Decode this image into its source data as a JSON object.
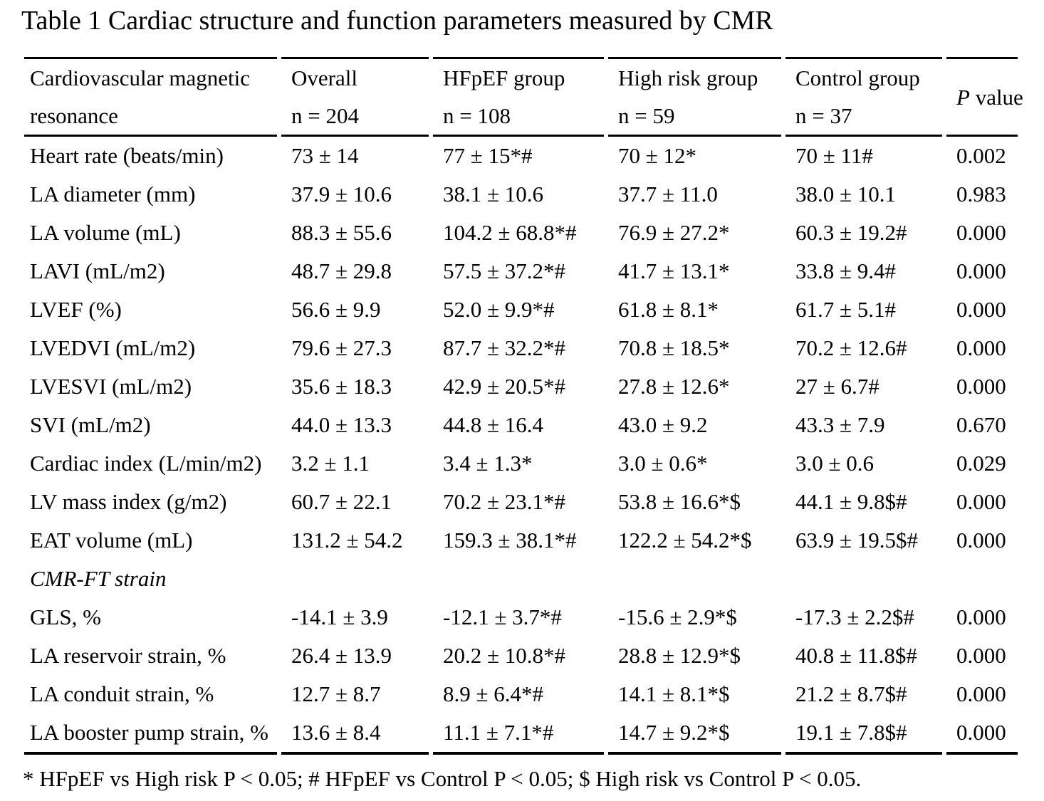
{
  "title": "Table 1 Cardiac structure and function parameters measured by CMR",
  "table": {
    "header": {
      "col1_line1": "Cardiovascular magnetic",
      "col1_line2": "resonance",
      "groups": [
        {
          "name": "Overall",
          "n": "n = 204"
        },
        {
          "name": "HFpEF group",
          "n": "n = 108"
        },
        {
          "name": "High risk group",
          "n": "n = 59"
        },
        {
          "name": "Control group",
          "n": "n = 37"
        }
      ],
      "p_italic": "P",
      "p_rest": " value"
    },
    "rows": [
      {
        "label": "Heart rate (beats/min)",
        "overall": "73 ± 14",
        "hfpef": "77 ± 15*#",
        "high_risk": "70 ± 12*",
        "control": "70 ± 11#",
        "p": "0.002",
        "section": false
      },
      {
        "label": "LA diameter (mm)",
        "overall": "37.9 ± 10.6",
        "hfpef": "38.1 ± 10.6",
        "high_risk": "37.7 ± 11.0",
        "control": "38.0 ± 10.1",
        "p": "0.983",
        "section": false
      },
      {
        "label": "LA volume (mL)",
        "overall": "88.3 ± 55.6",
        "hfpef": "104.2 ± 68.8*#",
        "high_risk": "76.9 ± 27.2*",
        "control": "60.3 ± 19.2#",
        "p": "0.000",
        "section": false
      },
      {
        "label": "LAVI (mL/m2)",
        "overall": "48.7 ± 29.8",
        "hfpef": "57.5 ± 37.2*#",
        "high_risk": "41.7 ± 13.1*",
        "control": "33.8 ± 9.4#",
        "p": "0.000",
        "section": false
      },
      {
        "label": "LVEF (%)",
        "overall": "56.6 ± 9.9",
        "hfpef": "52.0 ± 9.9*#",
        "high_risk": "61.8 ± 8.1*",
        "control": "61.7 ± 5.1#",
        "p": "0.000",
        "section": false
      },
      {
        "label": "LVEDVI (mL/m2)",
        "overall": "79.6 ± 27.3",
        "hfpef": "87.7 ± 32.2*#",
        "high_risk": "70.8 ± 18.5*",
        "control": "70.2 ± 12.6#",
        "p": "0.000",
        "section": false
      },
      {
        "label": "LVESVI (mL/m2)",
        "overall": "35.6 ± 18.3",
        "hfpef": "42.9 ± 20.5*#",
        "high_risk": "27.8 ± 12.6*",
        "control": "27 ± 6.7#",
        "p": "0.000",
        "section": false
      },
      {
        "label": "SVI (mL/m2)",
        "overall": "44.0 ± 13.3",
        "hfpef": "44.8 ± 16.4",
        "high_risk": "43.0 ± 9.2",
        "control": "43.3 ± 7.9",
        "p": "0.670",
        "section": false
      },
      {
        "label": "Cardiac index (L/min/m2)",
        "overall": "3.2 ± 1.1",
        "hfpef": "3.4 ± 1.3*",
        "high_risk": "3.0 ± 0.6*",
        "control": "3.0 ± 0.6",
        "p": "0.029",
        "section": false
      },
      {
        "label": "LV mass index (g/m2)",
        "overall": "60.7 ± 22.1",
        "hfpef": "70.2 ± 23.1*#",
        "high_risk": "53.8 ± 16.6*$",
        "control": "44.1 ± 9.8$#",
        "p": "0.000",
        "section": false
      },
      {
        "label": "EAT volume (mL)",
        "overall": "131.2 ± 54.2",
        "hfpef": "159.3 ± 38.1*#",
        "high_risk": "122.2 ± 54.2*$",
        "control": "63.9 ± 19.5$#",
        "p": "0.000",
        "section": false
      },
      {
        "label": "CMR-FT strain",
        "overall": "",
        "hfpef": "",
        "high_risk": "",
        "control": "",
        "p": "",
        "section": true
      },
      {
        "label": "GLS, %",
        "overall": "-14.1 ± 3.9",
        "hfpef": "-12.1 ± 3.7*#",
        "high_risk": "-15.6 ± 2.9*$",
        "control": "-17.3 ± 2.2$#",
        "p": "0.000",
        "section": false
      },
      {
        "label": "LA reservoir strain, %",
        "overall": "26.4 ± 13.9",
        "hfpef": "20.2 ± 10.8*#",
        "high_risk": "28.8 ± 12.9*$",
        "control": "40.8 ± 11.8$#",
        "p": "0.000",
        "section": false
      },
      {
        "label": "LA conduit strain, %",
        "overall": "12.7 ± 8.7",
        "hfpef": "8.9 ± 6.4*#",
        "high_risk": "14.1 ± 8.1*$",
        "control": "21.2 ± 8.7$#",
        "p": "0.000",
        "section": false
      },
      {
        "label": "LA booster pump strain, %",
        "overall": "13.6 ± 8.4",
        "hfpef": "11.1 ± 7.1*#",
        "high_risk": "14.7 ± 9.2*$",
        "control": "19.1 ± 7.8$#",
        "p": "0.000",
        "section": false
      }
    ]
  },
  "footnote": "* HFpEF vs High risk P < 0.05; # HFpEF vs Control P < 0.05; $ High risk vs Control P < 0.05."
}
